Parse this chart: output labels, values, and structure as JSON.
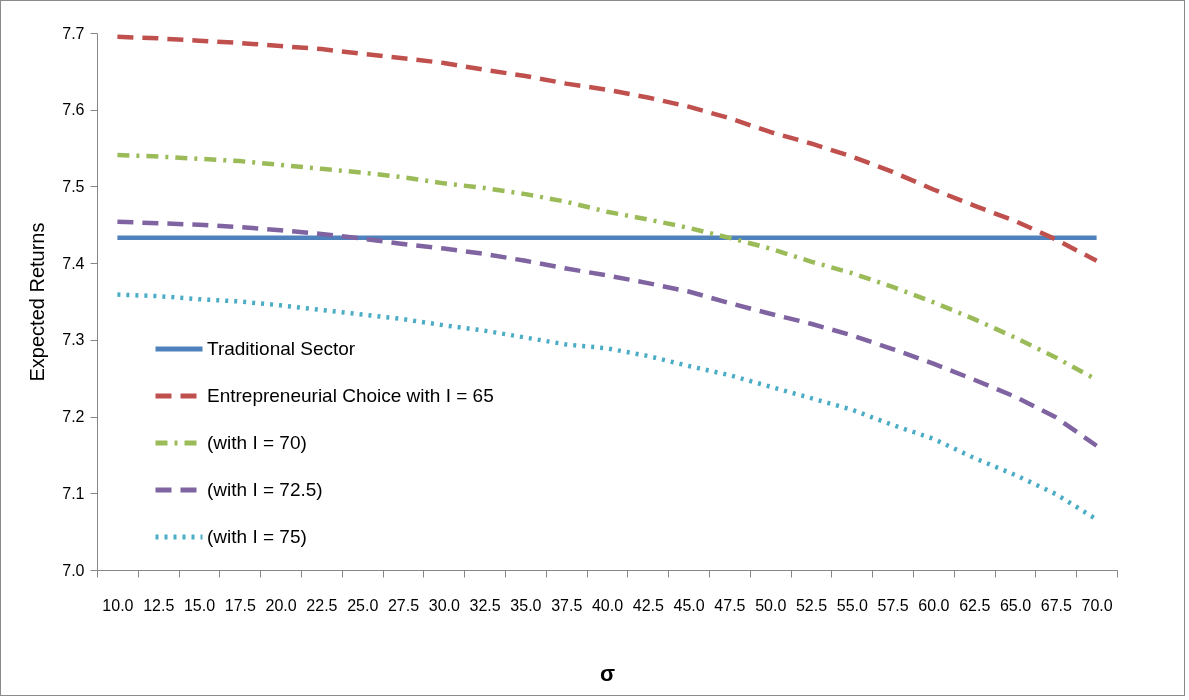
{
  "chart_data": {
    "type": "line",
    "xlabel": "σ",
    "ylabel": "Expected Returns",
    "categories": [
      "10.0",
      "12.5",
      "15.0",
      "17.5",
      "20.0",
      "22.5",
      "25.0",
      "27.5",
      "30.0",
      "32.5",
      "35.0",
      "37.5",
      "40.0",
      "42.5",
      "45.0",
      "47.5",
      "50.0",
      "52.5",
      "55.0",
      "57.5",
      "60.0",
      "62.5",
      "65.0",
      "67.5",
      "70.0"
    ],
    "series": [
      {
        "name": "Traditional Sector",
        "color": "#4f81bd",
        "line_style": "solid",
        "values": [
          7.433,
          7.433,
          7.433,
          7.433,
          7.433,
          7.433,
          7.433,
          7.433,
          7.433,
          7.433,
          7.433,
          7.433,
          7.433,
          7.433,
          7.433,
          7.433,
          7.433,
          7.433,
          7.433,
          7.433,
          7.433,
          7.433,
          7.433,
          7.433,
          7.433
        ]
      },
      {
        "name": "Entrepreneurial Choice with I = 65",
        "color": "#c0504d",
        "line_style": "dashed",
        "values": [
          7.695,
          7.693,
          7.69,
          7.687,
          7.683,
          7.679,
          7.673,
          7.667,
          7.661,
          7.652,
          7.644,
          7.634,
          7.626,
          7.616,
          7.604,
          7.589,
          7.571,
          7.556,
          7.539,
          7.519,
          7.496,
          7.475,
          7.455,
          7.431,
          7.403
        ]
      },
      {
        "name": "(with I = 70)",
        "color": "#9bbb59",
        "line_style": "dashdot",
        "values": [
          7.541,
          7.539,
          7.536,
          7.533,
          7.528,
          7.523,
          7.518,
          7.512,
          7.504,
          7.498,
          7.49,
          7.48,
          7.467,
          7.457,
          7.446,
          7.433,
          7.419,
          7.402,
          7.387,
          7.369,
          7.349,
          7.327,
          7.303,
          7.277,
          7.248
        ]
      },
      {
        "name": "(with I = 72.5)",
        "color": "#8064a2",
        "line_style": "dashed",
        "values": [
          7.454,
          7.452,
          7.45,
          7.447,
          7.443,
          7.438,
          7.432,
          7.425,
          7.419,
          7.412,
          7.403,
          7.393,
          7.384,
          7.374,
          7.363,
          7.348,
          7.334,
          7.321,
          7.306,
          7.288,
          7.269,
          7.248,
          7.226,
          7.199,
          7.162
        ]
      },
      {
        "name": "(with I = 75)",
        "color": "#4bacc6",
        "line_style": "dotted",
        "values": [
          7.359,
          7.357,
          7.353,
          7.35,
          7.345,
          7.339,
          7.333,
          7.327,
          7.319,
          7.312,
          7.303,
          7.294,
          7.289,
          7.279,
          7.266,
          7.254,
          7.239,
          7.224,
          7.209,
          7.189,
          7.171,
          7.146,
          7.124,
          7.099,
          7.066
        ]
      }
    ],
    "ylim": [
      7.0,
      7.7
    ],
    "yticks": [
      {
        "value": 7.0,
        "label": "7.0"
      },
      7.1,
      7.2,
      7.3,
      7.4,
      7.5,
      7.6,
      7.7
    ],
    "legend": "bottom left"
  }
}
